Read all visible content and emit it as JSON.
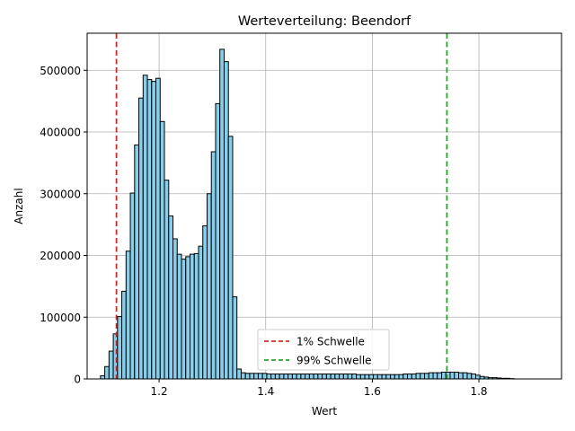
{
  "chart_data": {
    "type": "bar",
    "title": "Werteverteilung: Beendorf",
    "xlabel": "Wert",
    "ylabel": "Anzahl",
    "xlim": [
      1.065,
      1.955
    ],
    "ylim": [
      0,
      560000
    ],
    "x_ticks": [
      1.2,
      1.4,
      1.6,
      1.8
    ],
    "x_tick_labels": [
      "1.2",
      "1.4",
      "1.6",
      "1.8"
    ],
    "y_ticks": [
      0,
      100000,
      200000,
      300000,
      400000,
      500000
    ],
    "y_tick_labels": [
      "0",
      "100000",
      "200000",
      "300000",
      "400000",
      "500000"
    ],
    "grid": true,
    "bar_color": "#87ceeb",
    "bin_width": 0.008,
    "bin_edges_start": 1.09,
    "counts": [
      5000,
      20000,
      45000,
      73000,
      101000,
      142000,
      207000,
      301000,
      379000,
      455000,
      492000,
      485000,
      482000,
      487000,
      417000,
      322000,
      264000,
      227000,
      202000,
      194000,
      198000,
      202000,
      203000,
      215000,
      248000,
      300000,
      368000,
      446000,
      534000,
      514000,
      393000,
      133000,
      16000,
      10000,
      9000,
      9000,
      9000,
      9000,
      9000,
      8000,
      8000,
      8000,
      8000,
      8000,
      8000,
      8000,
      8000,
      8000,
      8000,
      8000,
      8000,
      8000,
      8000,
      8000,
      8000,
      8000,
      8000,
      8000,
      8000,
      8000,
      7000,
      7000,
      7000,
      7000,
      7000,
      7000,
      7000,
      7000,
      7000,
      7000,
      7000,
      8000,
      8000,
      8000,
      9000,
      9000,
      9000,
      10000,
      10000,
      10000,
      11000,
      11000,
      11000,
      11000,
      10000,
      10000,
      9000,
      8000,
      6000,
      4000,
      3000,
      2000,
      2000,
      1500,
      1000,
      1000,
      500,
      0
    ],
    "vlines": [
      {
        "x": 1.12,
        "color": "#d62728",
        "label": "1% Schwelle"
      },
      {
        "x": 1.74,
        "color": "#2ca02c",
        "label": "99% Schwelle"
      }
    ],
    "legend": {
      "placement": "lower center"
    }
  }
}
